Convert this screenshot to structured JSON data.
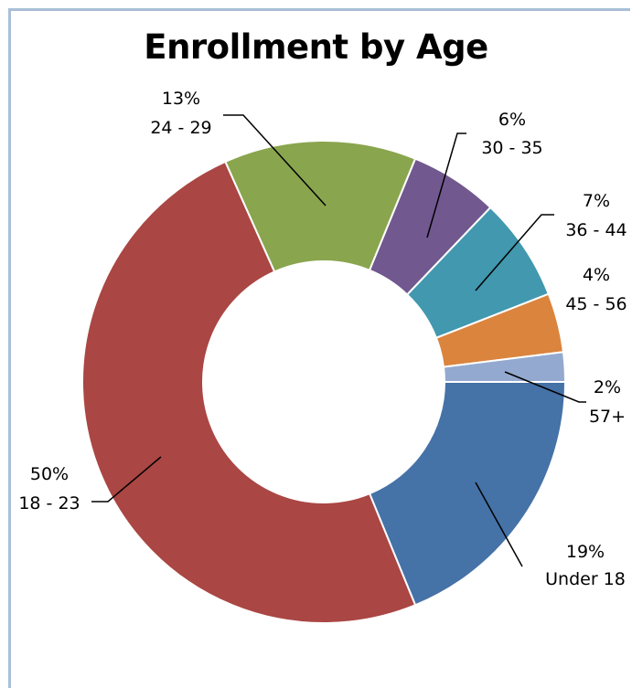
{
  "chart_data": {
    "type": "donut",
    "title": "Enrollment by Age",
    "categories": [
      "Under 18",
      "18 - 23",
      "24 - 29",
      "30 - 35",
      "36 - 44",
      "45 - 56",
      "57+"
    ],
    "values": [
      19,
      50,
      13,
      6,
      7,
      4,
      2
    ],
    "value_labels": [
      "19%",
      "50%",
      "13%",
      "6%",
      "7%",
      "4%",
      "2%"
    ],
    "colors": [
      "#4572a7",
      "#aa4643",
      "#89a54e",
      "#71588f",
      "#4198af",
      "#db843d",
      "#93a9cf"
    ],
    "legend": "none (category labels beside slices)"
  }
}
